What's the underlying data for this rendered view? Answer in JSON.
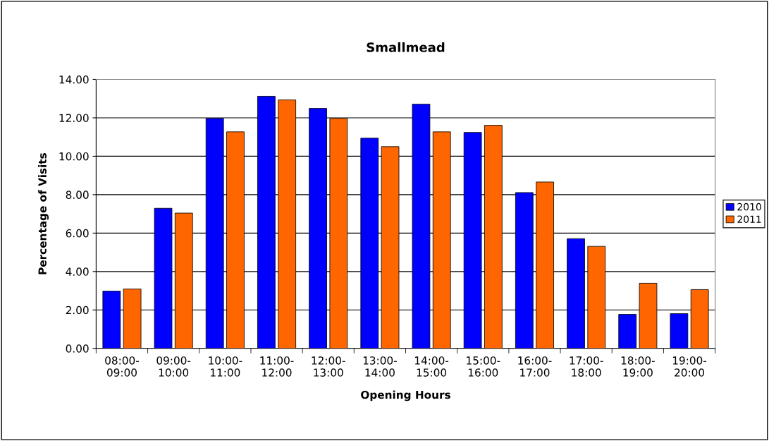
{
  "chart_data": {
    "type": "bar",
    "title": "Smallmead",
    "xlabel": "Opening Hours",
    "ylabel": "Percentage of Visits",
    "categories": [
      "08:00-09:00",
      "09:00-10:00",
      "10:00-11:00",
      "11:00-12:00",
      "12:00-13:00",
      "13:00-14:00",
      "14:00-15:00",
      "15:00-16:00",
      "16:00-17:00",
      "17:00-18:00",
      "18:00-19:00",
      "19:00-20:00"
    ],
    "series": [
      {
        "name": "2010",
        "color": "#0000ff",
        "values": [
          2.98,
          7.29,
          11.97,
          13.12,
          12.49,
          10.94,
          12.71,
          11.24,
          8.11,
          5.71,
          1.77,
          1.81
        ]
      },
      {
        "name": "2011",
        "color": "#ff6600",
        "values": [
          3.09,
          7.04,
          11.27,
          12.93,
          11.97,
          10.5,
          11.27,
          11.61,
          8.66,
          5.31,
          3.39,
          3.06
        ]
      }
    ],
    "ylim": [
      0,
      14
    ],
    "yticks": [
      {
        "value": 0,
        "label": "0.00"
      },
      {
        "value": 2,
        "label": "2.00"
      },
      {
        "value": 4,
        "label": "4.00"
      },
      {
        "value": 6,
        "label": "6.00"
      },
      {
        "value": 8,
        "label": "8.00"
      },
      {
        "value": 10,
        "label": "10.00"
      },
      {
        "value": 12,
        "label": "12.00"
      },
      {
        "value": 14,
        "label": "14.00"
      }
    ],
    "grid": "y",
    "legend": "right"
  }
}
